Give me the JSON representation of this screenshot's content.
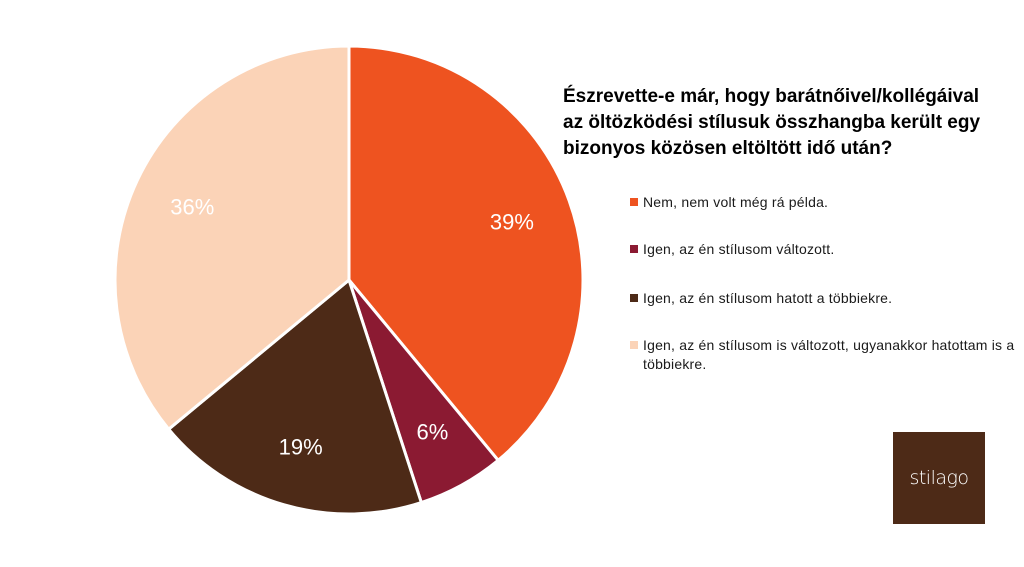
{
  "chart_data": {
    "type": "pie",
    "title": "Észrevette-e már, hogy barátnőivel/kollégáival az öltözködési stílusuk összhangba került egy bizonyos közösen eltöltött idő után?",
    "slices": [
      {
        "name": "Nem, nem volt még rá példa.",
        "value": 39,
        "label": "39%",
        "color": "#ee5320"
      },
      {
        "name": "Igen, az én stílusom változott.",
        "value": 6,
        "label": "6%",
        "color": "#8b1a32"
      },
      {
        "name": "Igen, az én stílusom hatott a többiekre.",
        "value": 19,
        "label": "19%",
        "color": "#4d2a17"
      },
      {
        "name": "Igen, az én stílusom is változott, ugyanakkor hatottam is a többiekre.",
        "value": 36,
        "label": "36%",
        "color": "#fbd3b7"
      }
    ],
    "legend_position": "right"
  },
  "logo": {
    "text": "stilago"
  }
}
